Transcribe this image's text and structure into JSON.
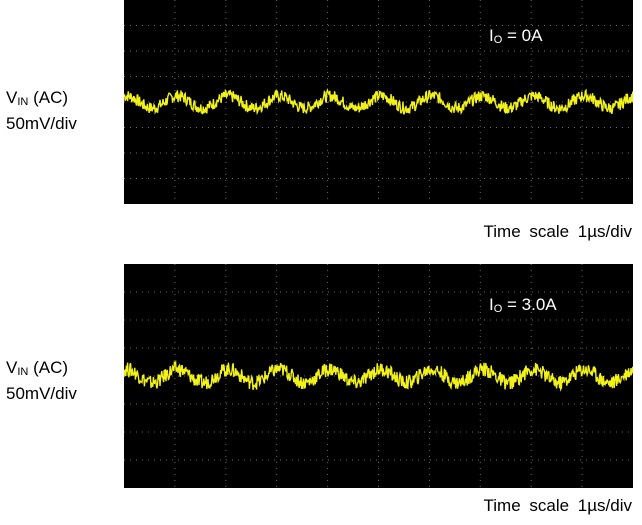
{
  "panels": [
    {
      "y_label_main": "V",
      "y_label_sub": "IN",
      "y_label_coupling": " (AC)",
      "y_scale": "50mV/div",
      "current_main": "I",
      "current_sub": "O",
      "current_value": " = 0A",
      "time_scale": "Time scale 1µs/div"
    },
    {
      "y_label_main": "V",
      "y_label_sub": "IN",
      "y_label_coupling": " (AC)",
      "y_scale": "50mV/div",
      "current_main": "I",
      "current_sub": "O",
      "current_value": " = 3.0A",
      "time_scale": "Time scale 1µs/div"
    }
  ],
  "colors": {
    "trace": "#ffff1a",
    "screen": "#000000",
    "grid": "#6a6a6a"
  },
  "chart_data": [
    {
      "type": "line",
      "x_unit": "µs",
      "x_per_div": 1,
      "y_unit": "mV",
      "y_per_div": 50,
      "grid": true,
      "series": [
        {
          "period_us": 1.0,
          "amplitude_mV": 12,
          "noise_mV": 12,
          "offset_mV": 0,
          "phase_us": 0.2
        }
      ]
    },
    {
      "type": "line",
      "x_unit": "µs",
      "x_per_div": 1,
      "y_unit": "mV",
      "y_per_div": 50,
      "grid": true,
      "series": [
        {
          "period_us": 1.0,
          "amplitude_mV": 12,
          "noise_mV": 13,
          "offset_mV": 0,
          "phase_us": 0.2
        }
      ]
    }
  ]
}
